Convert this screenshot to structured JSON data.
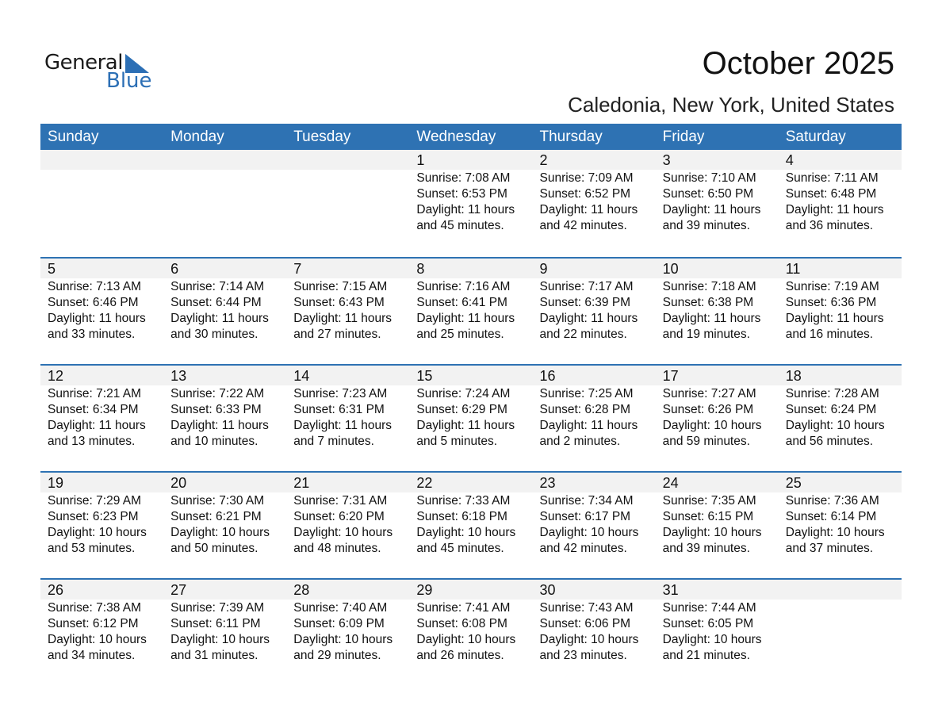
{
  "logo": {
    "word1": "General",
    "word2": "Blue"
  },
  "title": "October 2025",
  "subtitle": "Caledonia, New York, United States",
  "colors": {
    "header": "#2e72b3",
    "band": "#f2f2f2",
    "logo_blue": "#2c6fb5"
  },
  "weekdays": [
    "Sunday",
    "Monday",
    "Tuesday",
    "Wednesday",
    "Thursday",
    "Friday",
    "Saturday"
  ],
  "weeks": [
    [
      null,
      null,
      null,
      {
        "day": "1",
        "sunrise": "Sunrise: 7:08 AM",
        "sunset": "Sunset: 6:53 PM",
        "daylight": "Daylight: 11 hours",
        "minutes": "and 45 minutes."
      },
      {
        "day": "2",
        "sunrise": "Sunrise: 7:09 AM",
        "sunset": "Sunset: 6:52 PM",
        "daylight": "Daylight: 11 hours",
        "minutes": "and 42 minutes."
      },
      {
        "day": "3",
        "sunrise": "Sunrise: 7:10 AM",
        "sunset": "Sunset: 6:50 PM",
        "daylight": "Daylight: 11 hours",
        "minutes": "and 39 minutes."
      },
      {
        "day": "4",
        "sunrise": "Sunrise: 7:11 AM",
        "sunset": "Sunset: 6:48 PM",
        "daylight": "Daylight: 11 hours",
        "minutes": "and 36 minutes."
      }
    ],
    [
      {
        "day": "5",
        "sunrise": "Sunrise: 7:13 AM",
        "sunset": "Sunset: 6:46 PM",
        "daylight": "Daylight: 11 hours",
        "minutes": "and 33 minutes."
      },
      {
        "day": "6",
        "sunrise": "Sunrise: 7:14 AM",
        "sunset": "Sunset: 6:44 PM",
        "daylight": "Daylight: 11 hours",
        "minutes": "and 30 minutes."
      },
      {
        "day": "7",
        "sunrise": "Sunrise: 7:15 AM",
        "sunset": "Sunset: 6:43 PM",
        "daylight": "Daylight: 11 hours",
        "minutes": "and 27 minutes."
      },
      {
        "day": "8",
        "sunrise": "Sunrise: 7:16 AM",
        "sunset": "Sunset: 6:41 PM",
        "daylight": "Daylight: 11 hours",
        "minutes": "and 25 minutes."
      },
      {
        "day": "9",
        "sunrise": "Sunrise: 7:17 AM",
        "sunset": "Sunset: 6:39 PM",
        "daylight": "Daylight: 11 hours",
        "minutes": "and 22 minutes."
      },
      {
        "day": "10",
        "sunrise": "Sunrise: 7:18 AM",
        "sunset": "Sunset: 6:38 PM",
        "daylight": "Daylight: 11 hours",
        "minutes": "and 19 minutes."
      },
      {
        "day": "11",
        "sunrise": "Sunrise: 7:19 AM",
        "sunset": "Sunset: 6:36 PM",
        "daylight": "Daylight: 11 hours",
        "minutes": "and 16 minutes."
      }
    ],
    [
      {
        "day": "12",
        "sunrise": "Sunrise: 7:21 AM",
        "sunset": "Sunset: 6:34 PM",
        "daylight": "Daylight: 11 hours",
        "minutes": "and 13 minutes."
      },
      {
        "day": "13",
        "sunrise": "Sunrise: 7:22 AM",
        "sunset": "Sunset: 6:33 PM",
        "daylight": "Daylight: 11 hours",
        "minutes": "and 10 minutes."
      },
      {
        "day": "14",
        "sunrise": "Sunrise: 7:23 AM",
        "sunset": "Sunset: 6:31 PM",
        "daylight": "Daylight: 11 hours",
        "minutes": "and 7 minutes."
      },
      {
        "day": "15",
        "sunrise": "Sunrise: 7:24 AM",
        "sunset": "Sunset: 6:29 PM",
        "daylight": "Daylight: 11 hours",
        "minutes": "and 5 minutes."
      },
      {
        "day": "16",
        "sunrise": "Sunrise: 7:25 AM",
        "sunset": "Sunset: 6:28 PM",
        "daylight": "Daylight: 11 hours",
        "minutes": "and 2 minutes."
      },
      {
        "day": "17",
        "sunrise": "Sunrise: 7:27 AM",
        "sunset": "Sunset: 6:26 PM",
        "daylight": "Daylight: 10 hours",
        "minutes": "and 59 minutes."
      },
      {
        "day": "18",
        "sunrise": "Sunrise: 7:28 AM",
        "sunset": "Sunset: 6:24 PM",
        "daylight": "Daylight: 10 hours",
        "minutes": "and 56 minutes."
      }
    ],
    [
      {
        "day": "19",
        "sunrise": "Sunrise: 7:29 AM",
        "sunset": "Sunset: 6:23 PM",
        "daylight": "Daylight: 10 hours",
        "minutes": "and 53 minutes."
      },
      {
        "day": "20",
        "sunrise": "Sunrise: 7:30 AM",
        "sunset": "Sunset: 6:21 PM",
        "daylight": "Daylight: 10 hours",
        "minutes": "and 50 minutes."
      },
      {
        "day": "21",
        "sunrise": "Sunrise: 7:31 AM",
        "sunset": "Sunset: 6:20 PM",
        "daylight": "Daylight: 10 hours",
        "minutes": "and 48 minutes."
      },
      {
        "day": "22",
        "sunrise": "Sunrise: 7:33 AM",
        "sunset": "Sunset: 6:18 PM",
        "daylight": "Daylight: 10 hours",
        "minutes": "and 45 minutes."
      },
      {
        "day": "23",
        "sunrise": "Sunrise: 7:34 AM",
        "sunset": "Sunset: 6:17 PM",
        "daylight": "Daylight: 10 hours",
        "minutes": "and 42 minutes."
      },
      {
        "day": "24",
        "sunrise": "Sunrise: 7:35 AM",
        "sunset": "Sunset: 6:15 PM",
        "daylight": "Daylight: 10 hours",
        "minutes": "and 39 minutes."
      },
      {
        "day": "25",
        "sunrise": "Sunrise: 7:36 AM",
        "sunset": "Sunset: 6:14 PM",
        "daylight": "Daylight: 10 hours",
        "minutes": "and 37 minutes."
      }
    ],
    [
      {
        "day": "26",
        "sunrise": "Sunrise: 7:38 AM",
        "sunset": "Sunset: 6:12 PM",
        "daylight": "Daylight: 10 hours",
        "minutes": "and 34 minutes."
      },
      {
        "day": "27",
        "sunrise": "Sunrise: 7:39 AM",
        "sunset": "Sunset: 6:11 PM",
        "daylight": "Daylight: 10 hours",
        "minutes": "and 31 minutes."
      },
      {
        "day": "28",
        "sunrise": "Sunrise: 7:40 AM",
        "sunset": "Sunset: 6:09 PM",
        "daylight": "Daylight: 10 hours",
        "minutes": "and 29 minutes."
      },
      {
        "day": "29",
        "sunrise": "Sunrise: 7:41 AM",
        "sunset": "Sunset: 6:08 PM",
        "daylight": "Daylight: 10 hours",
        "minutes": "and 26 minutes."
      },
      {
        "day": "30",
        "sunrise": "Sunrise: 7:43 AM",
        "sunset": "Sunset: 6:06 PM",
        "daylight": "Daylight: 10 hours",
        "minutes": "and 23 minutes."
      },
      {
        "day": "31",
        "sunrise": "Sunrise: 7:44 AM",
        "sunset": "Sunset: 6:05 PM",
        "daylight": "Daylight: 10 hours",
        "minutes": "and 21 minutes."
      },
      null
    ]
  ]
}
